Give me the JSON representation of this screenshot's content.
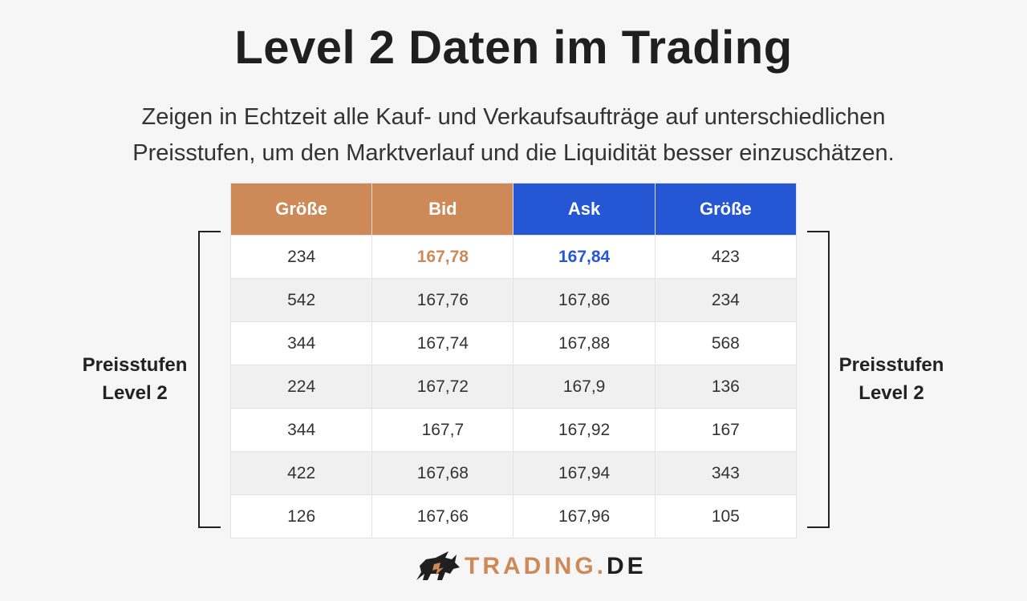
{
  "title": "Level 2 Daten im Trading",
  "subtitle_lines": [
    "Zeigen in Echtzeit alle Kauf- und Verkaufsaufträge auf unterschiedlichen",
    "Preisstufen, um den Marktverlauf und die Liquidität besser einzuschätzen."
  ],
  "side_label": {
    "line1": "Preisstufen",
    "line2": "Level 2"
  },
  "table": {
    "headers": [
      "Größe",
      "Bid",
      "Ask",
      "Größe"
    ],
    "rows": [
      [
        "234",
        "167,78",
        "167,84",
        "423"
      ],
      [
        "542",
        "167,76",
        "167,86",
        "234"
      ],
      [
        "344",
        "167,74",
        "167,88",
        "568"
      ],
      [
        "224",
        "167,72",
        "167,9",
        "136"
      ],
      [
        "344",
        "167,7",
        "167,92",
        "167"
      ],
      [
        "422",
        "167,68",
        "167,94",
        "343"
      ],
      [
        "126",
        "167,66",
        "167,96",
        "105"
      ]
    ]
  },
  "colors": {
    "bid": "#cd8a58",
    "ask": "#2557d5"
  },
  "logo": {
    "icon": "bull-icon",
    "word": "TRADING",
    "dot": ".",
    "tld": "DE"
  }
}
